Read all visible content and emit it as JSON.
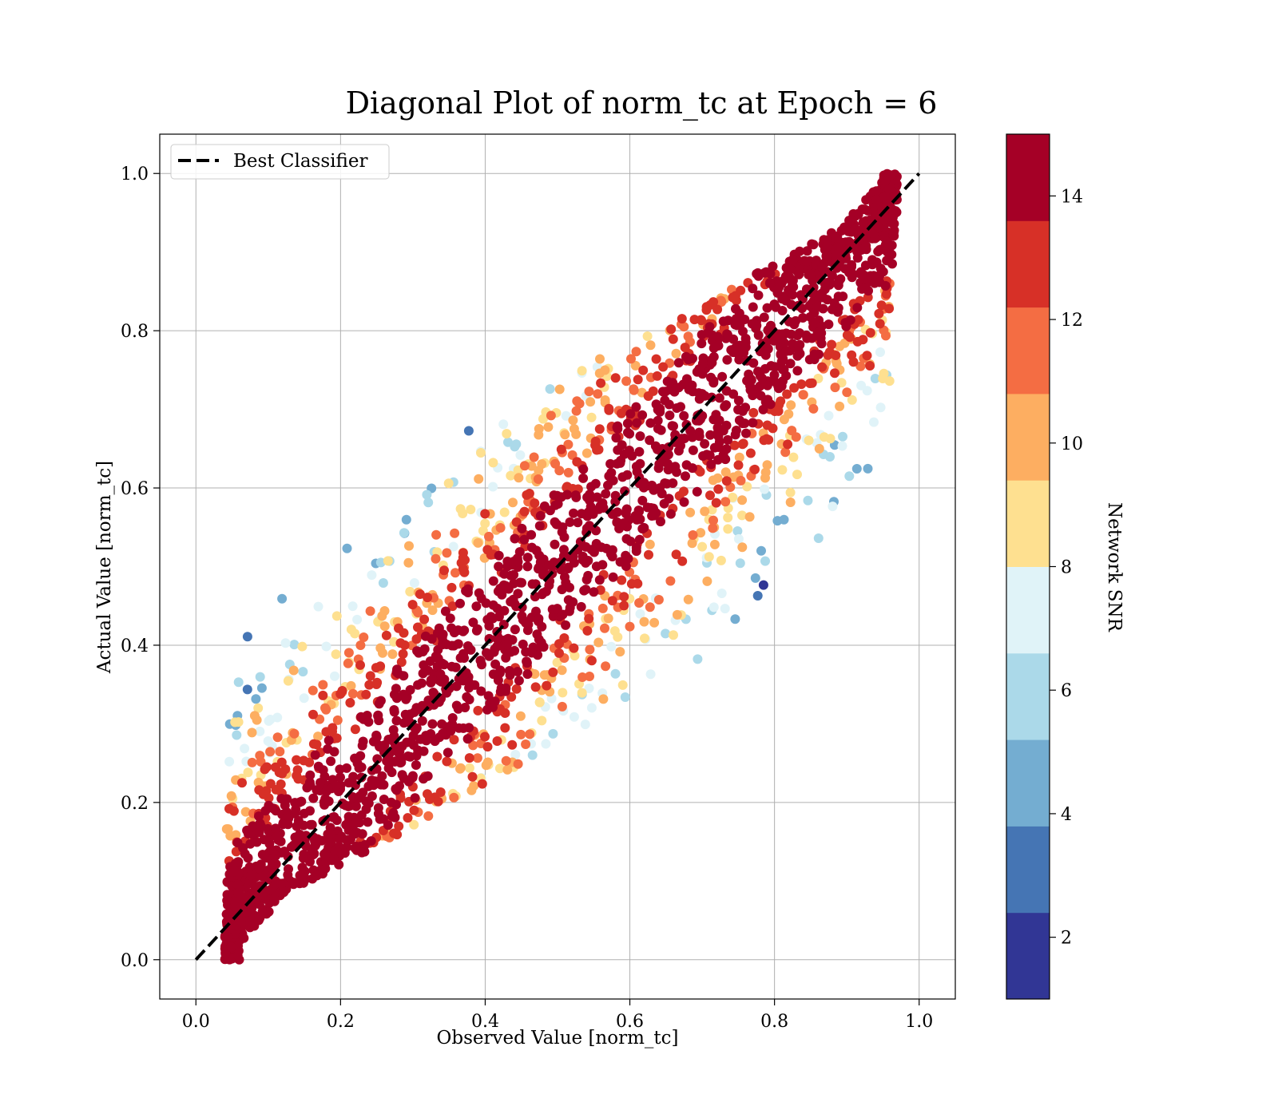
{
  "chart_data": {
    "type": "scatter",
    "title": "Diagonal Plot of norm_tc at Epoch = 6",
    "xlabel": "Observed Value [norm_tc]",
    "ylabel": "Actual Value [norm_tc]",
    "xlim": [
      -0.05,
      1.05
    ],
    "ylim": [
      -0.05,
      1.05
    ],
    "x_ticks": [
      "0.0",
      "0.2",
      "0.4",
      "0.6",
      "0.8",
      "1.0"
    ],
    "y_ticks": [
      "0.0",
      "0.2",
      "0.4",
      "0.6",
      "0.8",
      "1.0"
    ],
    "grid": true,
    "legend": {
      "position": "upper-left",
      "entries": [
        "Best Classifier"
      ]
    },
    "reference_line": {
      "name": "Best Classifier",
      "x": [
        0.0,
        1.0
      ],
      "y": [
        0.0,
        1.0
      ],
      "style": "dashed",
      "color": "#000000"
    },
    "colorbar": {
      "label": "Network SNR",
      "range": [
        1,
        15
      ],
      "ticks": [
        "2",
        "4",
        "6",
        "8",
        "10",
        "12",
        "14"
      ],
      "colors": [
        "#313695",
        "#4575b4",
        "#74add1",
        "#abd9e9",
        "#e0f3f8",
        "#fee090",
        "#fdae61",
        "#f46d43",
        "#d73027",
        "#a50026"
      ]
    },
    "scatter_pattern": {
      "x_offset_range": [
        0.04,
        0.97
      ],
      "high_snr_band_halfwidth": 0.07,
      "low_snr_spread": 0.35,
      "point_count": 2600
    }
  }
}
